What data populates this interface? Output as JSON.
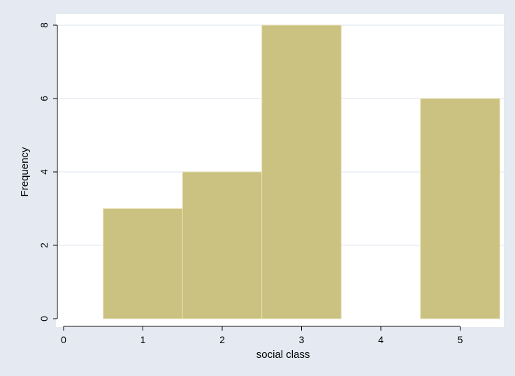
{
  "chart_data": {
    "type": "bar",
    "subtype": "histogram",
    "bins": [
      {
        "from": 0.5,
        "to": 1.5,
        "value": 3
      },
      {
        "from": 1.5,
        "to": 2.5,
        "value": 4
      },
      {
        "from": 2.5,
        "to": 3.5,
        "value": 8
      },
      {
        "from": 3.5,
        "to": 4.5,
        "value": 0
      },
      {
        "from": 4.5,
        "to": 5.5,
        "value": 6
      }
    ],
    "xlabel": "social class",
    "ylabel": "Frequency",
    "xlim": [
      0,
      5.5
    ],
    "ylim": [
      0,
      8
    ],
    "xticks": [
      0,
      1,
      2,
      3,
      4,
      5
    ],
    "yticks": [
      0,
      2,
      4,
      6,
      8
    ],
    "grid": "horizontal",
    "legend": "none"
  },
  "colors": {
    "bar_fill": "#cbc180",
    "bar_edge": "#e6dfb6",
    "outer_background": "#e4e9f2",
    "plot_background": "#ffffff",
    "grid": "#e4e9f2",
    "axis": "#000000"
  }
}
